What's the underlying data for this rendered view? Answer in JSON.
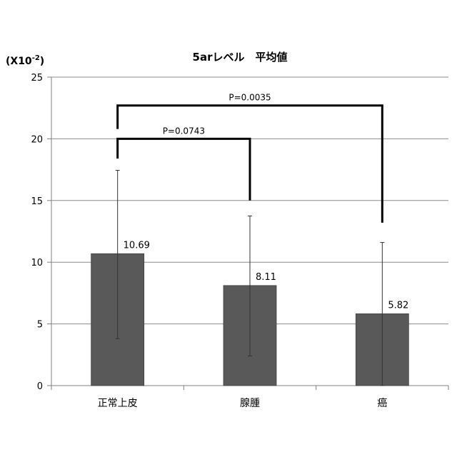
{
  "chart_data": {
    "type": "bar",
    "title": "5arレベル　平均値",
    "ylabel": "(X10-2)",
    "ylabel_parts": {
      "prefix": "(X10",
      "superscript": "-2",
      "suffix": ")"
    },
    "categories": [
      "正常上皮",
      "腺腫",
      "癌"
    ],
    "values": [
      10.69,
      8.11,
      5.82
    ],
    "error_low": [
      3.8,
      2.4,
      0.0
    ],
    "error_high": [
      17.45,
      13.75,
      11.6
    ],
    "data_labels": [
      "10.69",
      "8.11",
      "5.82"
    ],
    "ylim": [
      0,
      25
    ],
    "yticks": [
      0,
      5,
      10,
      15,
      20,
      25
    ],
    "ytick_labels": [
      "0",
      "5",
      "10",
      "15",
      "20",
      "25"
    ],
    "grid": true,
    "legend": "none",
    "bar_color": "#595959",
    "significance": [
      {
        "from": 0,
        "to": 1,
        "label": "P=0.0743",
        "bracket_y": 20,
        "left_end_y": 18.4,
        "right_end_y": 15.0
      },
      {
        "from": 0,
        "to": 2,
        "label": "P=0.0035",
        "bracket_y": 22.7,
        "left_end_y": 20.8,
        "right_end_y": 13.2
      }
    ]
  }
}
